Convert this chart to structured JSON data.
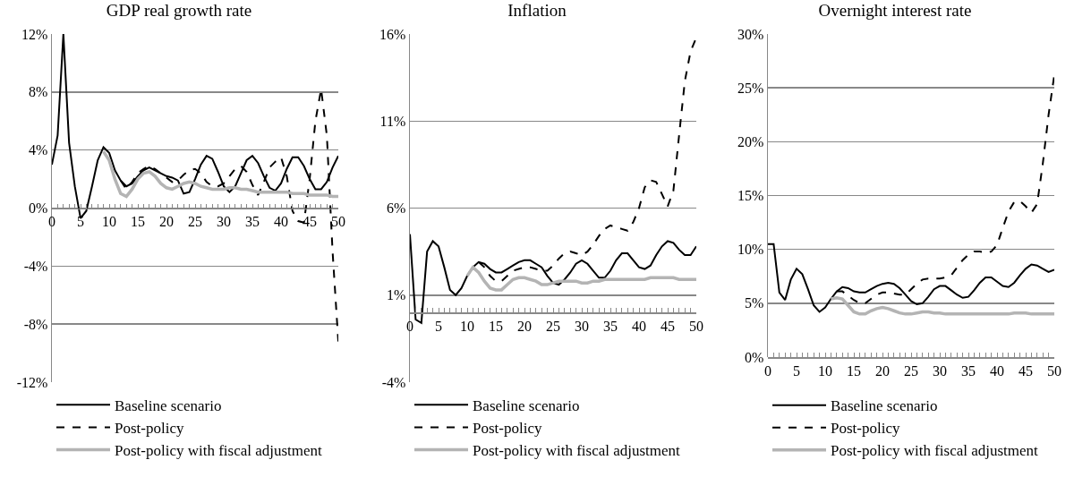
{
  "chart_data": [
    {
      "type": "line",
      "title": "GDP real growth rate",
      "x": [
        0,
        1,
        2,
        3,
        4,
        5,
        6,
        7,
        8,
        9,
        10,
        11,
        12,
        13,
        14,
        15,
        16,
        17,
        18,
        19,
        20,
        21,
        22,
        23,
        24,
        25,
        26,
        27,
        28,
        29,
        30,
        31,
        32,
        33,
        34,
        35,
        36,
        37,
        38,
        39,
        40,
        41,
        42,
        43,
        44,
        45,
        46,
        47,
        48,
        49,
        50
      ],
      "xlim": [
        0,
        50
      ],
      "xticks": [
        0,
        {
          "value": 1,
          "label": null
        },
        {
          "value": 2,
          "label": null
        },
        {
          "value": 3,
          "label": null
        },
        {
          "value": 4,
          "label": null
        },
        5,
        {
          "value": 6,
          "label": null
        },
        {
          "value": 7,
          "label": null
        },
        {
          "value": 8,
          "label": null
        },
        {
          "value": 9,
          "label": null
        },
        10,
        {
          "value": 11,
          "label": null
        },
        {
          "value": 12,
          "label": null
        },
        {
          "value": 13,
          "label": null
        },
        {
          "value": 14,
          "label": null
        },
        15,
        {
          "value": 16,
          "label": null
        },
        {
          "value": 17,
          "label": null
        },
        {
          "value": 18,
          "label": null
        },
        {
          "value": 19,
          "label": null
        },
        20,
        {
          "value": 21,
          "label": null
        },
        {
          "value": 22,
          "label": null
        },
        {
          "value": 23,
          "label": null
        },
        {
          "value": 24,
          "label": null
        },
        25,
        {
          "value": 26,
          "label": null
        },
        {
          "value": 27,
          "label": null
        },
        {
          "value": 28,
          "label": null
        },
        {
          "value": 29,
          "label": null
        },
        30,
        {
          "value": 31,
          "label": null
        },
        {
          "value": 32,
          "label": null
        },
        {
          "value": 33,
          "label": null
        },
        {
          "value": 34,
          "label": null
        },
        35,
        {
          "value": 36,
          "label": null
        },
        {
          "value": 37,
          "label": null
        },
        {
          "value": 38,
          "label": null
        },
        {
          "value": 39,
          "label": null
        },
        40,
        {
          "value": 41,
          "label": null
        },
        {
          "value": 42,
          "label": null
        },
        {
          "value": 43,
          "label": null
        },
        {
          "value": 44,
          "label": null
        },
        45,
        {
          "value": 46,
          "label": null
        },
        {
          "value": 47,
          "label": null
        },
        {
          "value": 48,
          "label": null
        },
        {
          "value": 49,
          "label": null
        },
        50
      ],
      "ylim": [
        -12,
        12
      ],
      "yticks": [
        {
          "value": -12,
          "label": "-12%"
        },
        {
          "value": -8,
          "label": "-8%"
        },
        {
          "value": -4,
          "label": "-4%"
        },
        {
          "value": 0,
          "label": "0%"
        },
        {
          "value": 4,
          "label": "4%"
        },
        {
          "value": 8,
          "label": "8%"
        },
        {
          "value": 12,
          "label": "12%"
        }
      ],
      "grid": "y",
      "legend": "bottom",
      "marker": "none",
      "series": [
        {
          "name": "Baseline scenario",
          "color": "#000000",
          "line_style": "solid",
          "values": [
            3.0,
            5.0,
            12.0,
            4.5,
            1.5,
            -0.7,
            -0.2,
            1.5,
            3.3,
            4.2,
            3.8,
            2.6,
            1.9,
            1.5,
            1.7,
            2.2,
            2.6,
            2.8,
            2.6,
            2.4,
            2.2,
            2.1,
            1.9,
            1.0,
            1.1,
            2.0,
            3.0,
            3.6,
            3.4,
            2.5,
            1.5,
            1.1,
            1.5,
            2.4,
            3.3,
            3.6,
            3.1,
            2.2,
            1.4,
            1.2,
            1.7,
            2.7,
            3.5,
            3.5,
            2.9,
            2.0,
            1.3,
            1.3,
            1.8,
            2.8,
            3.6
          ]
        },
        {
          "name": "Post-policy",
          "color": "#000000",
          "line_style": "dashed",
          "values": [
            null,
            null,
            null,
            null,
            null,
            null,
            null,
            null,
            null,
            null,
            null,
            null,
            1.9,
            1.3,
            1.8,
            2.4,
            2.7,
            2.9,
            2.7,
            2.4,
            2.1,
            1.8,
            1.9,
            2.3,
            2.6,
            2.7,
            2.4,
            1.8,
            1.5,
            1.5,
            1.7,
            2.2,
            2.7,
            2.9,
            2.5,
            1.6,
            0.9,
            1.8,
            2.8,
            3.2,
            3.5,
            2.2,
            -0.2,
            -0.9,
            -1.0,
            2.0,
            6.0,
            8.2,
            5.0,
            -3.0,
            -9.2
          ]
        },
        {
          "name": "Post-policy with fiscal adjustment",
          "color": "#b4b4b4",
          "line_style": "solid",
          "values": [
            null,
            null,
            null,
            null,
            null,
            null,
            null,
            null,
            null,
            3.9,
            3.3,
            2.0,
            1.0,
            0.8,
            1.3,
            2.0,
            2.4,
            2.5,
            2.2,
            1.7,
            1.4,
            1.3,
            1.5,
            1.7,
            1.8,
            1.7,
            1.5,
            1.4,
            1.3,
            1.3,
            1.3,
            1.4,
            1.4,
            1.3,
            1.3,
            1.2,
            1.1,
            1.1,
            1.1,
            1.1,
            1.1,
            1.1,
            1.0,
            1.0,
            1.0,
            0.9,
            0.9,
            0.9,
            0.9,
            0.8,
            0.8
          ]
        }
      ]
    },
    {
      "type": "line",
      "title": "Inflation",
      "x": [
        0,
        1,
        2,
        3,
        4,
        5,
        6,
        7,
        8,
        9,
        10,
        11,
        12,
        13,
        14,
        15,
        16,
        17,
        18,
        19,
        20,
        21,
        22,
        23,
        24,
        25,
        26,
        27,
        28,
        29,
        30,
        31,
        32,
        33,
        34,
        35,
        36,
        37,
        38,
        39,
        40,
        41,
        42,
        43,
        44,
        45,
        46,
        47,
        48,
        49,
        50
      ],
      "xlim": [
        0,
        50
      ],
      "xticks": [
        0,
        {
          "value": 1,
          "label": null
        },
        {
          "value": 2,
          "label": null
        },
        {
          "value": 3,
          "label": null
        },
        {
          "value": 4,
          "label": null
        },
        5,
        {
          "value": 6,
          "label": null
        },
        {
          "value": 7,
          "label": null
        },
        {
          "value": 8,
          "label": null
        },
        {
          "value": 9,
          "label": null
        },
        10,
        {
          "value": 11,
          "label": null
        },
        {
          "value": 12,
          "label": null
        },
        {
          "value": 13,
          "label": null
        },
        {
          "value": 14,
          "label": null
        },
        15,
        {
          "value": 16,
          "label": null
        },
        {
          "value": 17,
          "label": null
        },
        {
          "value": 18,
          "label": null
        },
        {
          "value": 19,
          "label": null
        },
        20,
        {
          "value": 21,
          "label": null
        },
        {
          "value": 22,
          "label": null
        },
        {
          "value": 23,
          "label": null
        },
        {
          "value": 24,
          "label": null
        },
        25,
        {
          "value": 26,
          "label": null
        },
        {
          "value": 27,
          "label": null
        },
        {
          "value": 28,
          "label": null
        },
        {
          "value": 29,
          "label": null
        },
        30,
        {
          "value": 31,
          "label": null
        },
        {
          "value": 32,
          "label": null
        },
        {
          "value": 33,
          "label": null
        },
        {
          "value": 34,
          "label": null
        },
        35,
        {
          "value": 36,
          "label": null
        },
        {
          "value": 37,
          "label": null
        },
        {
          "value": 38,
          "label": null
        },
        {
          "value": 39,
          "label": null
        },
        40,
        {
          "value": 41,
          "label": null
        },
        {
          "value": 42,
          "label": null
        },
        {
          "value": 43,
          "label": null
        },
        {
          "value": 44,
          "label": null
        },
        45,
        {
          "value": 46,
          "label": null
        },
        {
          "value": 47,
          "label": null
        },
        {
          "value": 48,
          "label": null
        },
        {
          "value": 49,
          "label": null
        },
        50
      ],
      "ylim": [
        -4,
        16
      ],
      "yticks": [
        {
          "value": -4,
          "label": "-4%"
        },
        {
          "value": 1,
          "label": "1%"
        },
        {
          "value": 6,
          "label": "6%"
        },
        {
          "value": 11,
          "label": "11%"
        },
        {
          "value": 16,
          "label": "16%"
        }
      ],
      "grid": "y",
      "legend": "bottom",
      "marker": "none",
      "series": [
        {
          "name": "Baseline scenario",
          "color": "#000000",
          "line_style": "solid",
          "values": [
            4.5,
            -0.4,
            -0.6,
            3.5,
            4.1,
            3.8,
            2.6,
            1.3,
            1.0,
            1.4,
            2.1,
            2.6,
            2.9,
            2.8,
            2.5,
            2.3,
            2.3,
            2.5,
            2.7,
            2.9,
            3.0,
            3.0,
            2.8,
            2.6,
            2.1,
            1.7,
            1.6,
            1.9,
            2.3,
            2.8,
            3.0,
            2.8,
            2.4,
            2.0,
            2.0,
            2.4,
            3.0,
            3.4,
            3.4,
            3.0,
            2.6,
            2.5,
            2.7,
            3.3,
            3.8,
            4.1,
            4.0,
            3.6,
            3.3,
            3.3,
            3.8
          ]
        },
        {
          "name": "Post-policy",
          "color": "#000000",
          "line_style": "dashed",
          "values": [
            null,
            null,
            null,
            null,
            null,
            null,
            null,
            null,
            null,
            null,
            null,
            null,
            2.9,
            2.6,
            2.1,
            1.8,
            1.8,
            2.1,
            2.4,
            2.5,
            2.6,
            2.6,
            2.5,
            2.4,
            2.4,
            2.7,
            3.1,
            3.4,
            3.5,
            3.4,
            3.3,
            3.5,
            3.9,
            4.4,
            4.8,
            5.0,
            4.9,
            4.8,
            4.7,
            5.2,
            6.0,
            7.2,
            7.6,
            7.5,
            6.8,
            6.1,
            7.0,
            10.2,
            13.3,
            15.0,
            15.8
          ]
        },
        {
          "name": "Post-policy with fiscal adjustment",
          "color": "#b4b4b4",
          "line_style": "solid",
          "values": [
            null,
            null,
            null,
            null,
            null,
            null,
            null,
            null,
            null,
            null,
            2.1,
            2.6,
            2.3,
            1.8,
            1.4,
            1.3,
            1.3,
            1.6,
            1.9,
            2.0,
            2.0,
            1.9,
            1.8,
            1.6,
            1.6,
            1.7,
            1.8,
            1.8,
            1.8,
            1.8,
            1.7,
            1.7,
            1.8,
            1.8,
            1.9,
            1.9,
            1.9,
            1.9,
            1.9,
            1.9,
            1.9,
            1.9,
            2.0,
            2.0,
            2.0,
            2.0,
            2.0,
            1.9,
            1.9,
            1.9,
            1.9
          ]
        }
      ]
    },
    {
      "type": "line",
      "title": "Overnight interest rate",
      "x": [
        0,
        1,
        2,
        3,
        4,
        5,
        6,
        7,
        8,
        9,
        10,
        11,
        12,
        13,
        14,
        15,
        16,
        17,
        18,
        19,
        20,
        21,
        22,
        23,
        24,
        25,
        26,
        27,
        28,
        29,
        30,
        31,
        32,
        33,
        34,
        35,
        36,
        37,
        38,
        39,
        40,
        41,
        42,
        43,
        44,
        45,
        46,
        47,
        48,
        49,
        50
      ],
      "xlim": [
        0,
        50
      ],
      "xticks": [
        0,
        {
          "value": 1,
          "label": null
        },
        {
          "value": 2,
          "label": null
        },
        {
          "value": 3,
          "label": null
        },
        {
          "value": 4,
          "label": null
        },
        5,
        {
          "value": 6,
          "label": null
        },
        {
          "value": 7,
          "label": null
        },
        {
          "value": 8,
          "label": null
        },
        {
          "value": 9,
          "label": null
        },
        10,
        {
          "value": 11,
          "label": null
        },
        {
          "value": 12,
          "label": null
        },
        {
          "value": 13,
          "label": null
        },
        {
          "value": 14,
          "label": null
        },
        15,
        {
          "value": 16,
          "label": null
        },
        {
          "value": 17,
          "label": null
        },
        {
          "value": 18,
          "label": null
        },
        {
          "value": 19,
          "label": null
        },
        20,
        {
          "value": 21,
          "label": null
        },
        {
          "value": 22,
          "label": null
        },
        {
          "value": 23,
          "label": null
        },
        {
          "value": 24,
          "label": null
        },
        25,
        {
          "value": 26,
          "label": null
        },
        {
          "value": 27,
          "label": null
        },
        {
          "value": 28,
          "label": null
        },
        {
          "value": 29,
          "label": null
        },
        30,
        {
          "value": 31,
          "label": null
        },
        {
          "value": 32,
          "label": null
        },
        {
          "value": 33,
          "label": null
        },
        {
          "value": 34,
          "label": null
        },
        35,
        {
          "value": 36,
          "label": null
        },
        {
          "value": 37,
          "label": null
        },
        {
          "value": 38,
          "label": null
        },
        {
          "value": 39,
          "label": null
        },
        40,
        {
          "value": 41,
          "label": null
        },
        {
          "value": 42,
          "label": null
        },
        {
          "value": 43,
          "label": null
        },
        {
          "value": 44,
          "label": null
        },
        45,
        {
          "value": 46,
          "label": null
        },
        {
          "value": 47,
          "label": null
        },
        {
          "value": 48,
          "label": null
        },
        {
          "value": 49,
          "label": null
        },
        50
      ],
      "ylim": [
        0,
        30
      ],
      "yticks": [
        {
          "value": 0,
          "label": "0%"
        },
        {
          "value": 5,
          "label": "5%"
        },
        {
          "value": 10,
          "label": "10%"
        },
        {
          "value": 15,
          "label": "15%"
        },
        {
          "value": 20,
          "label": "20%"
        },
        {
          "value": 25,
          "label": "25%"
        },
        {
          "value": 30,
          "label": "30%"
        }
      ],
      "grid": "y",
      "legend": "bottom",
      "marker": "none",
      "series": [
        {
          "name": "Baseline scenario",
          "color": "#000000",
          "line_style": "solid",
          "values": [
            10.5,
            10.5,
            6.0,
            5.3,
            7.2,
            8.2,
            7.7,
            6.3,
            4.8,
            4.2,
            4.6,
            5.4,
            6.1,
            6.5,
            6.4,
            6.1,
            6.0,
            6.0,
            6.3,
            6.6,
            6.8,
            6.9,
            6.8,
            6.4,
            5.8,
            5.2,
            4.9,
            5.0,
            5.6,
            6.3,
            6.6,
            6.6,
            6.2,
            5.8,
            5.5,
            5.6,
            6.2,
            6.9,
            7.4,
            7.4,
            7.0,
            6.6,
            6.5,
            6.9,
            7.6,
            8.2,
            8.6,
            8.5,
            8.2,
            7.9,
            8.1
          ]
        },
        {
          "name": "Post-policy",
          "color": "#000000",
          "line_style": "dashed",
          "values": [
            null,
            null,
            null,
            null,
            null,
            null,
            null,
            null,
            null,
            null,
            null,
            null,
            6.1,
            6.1,
            5.7,
            5.3,
            5.0,
            5.0,
            5.4,
            5.8,
            6.0,
            6.0,
            5.9,
            5.8,
            5.8,
            6.3,
            6.8,
            7.2,
            7.3,
            7.3,
            7.3,
            7.4,
            7.6,
            8.3,
            9.0,
            9.5,
            9.8,
            9.8,
            9.7,
            9.8,
            10.4,
            12.0,
            13.5,
            14.4,
            14.5,
            14.0,
            13.4,
            14.2,
            18.0,
            22.5,
            26.2
          ]
        },
        {
          "name": "Post-policy with fiscal adjustment",
          "color": "#b4b4b4",
          "line_style": "solid",
          "values": [
            null,
            null,
            null,
            null,
            null,
            null,
            null,
            null,
            null,
            null,
            null,
            5.4,
            5.5,
            5.4,
            4.8,
            4.2,
            4.0,
            4.0,
            4.3,
            4.5,
            4.6,
            4.5,
            4.3,
            4.1,
            4.0,
            4.0,
            4.1,
            4.2,
            4.2,
            4.1,
            4.1,
            4.0,
            4.0,
            4.0,
            4.0,
            4.0,
            4.0,
            4.0,
            4.0,
            4.0,
            4.0,
            4.0,
            4.0,
            4.1,
            4.1,
            4.1,
            4.0,
            4.0,
            4.0,
            4.0,
            4.0
          ]
        }
      ]
    }
  ]
}
